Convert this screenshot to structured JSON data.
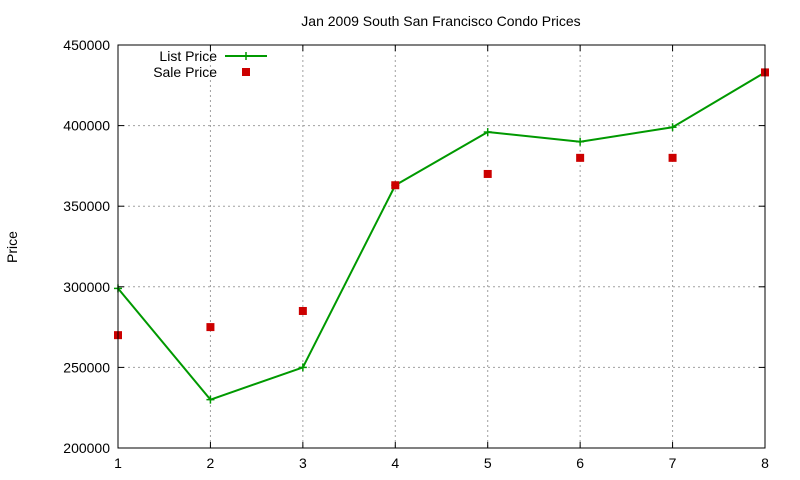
{
  "chart_data": {
    "type": "line",
    "title": "Jan 2009 South San Francisco Condo Prices",
    "xlabel": "",
    "ylabel": "Price",
    "x": [
      1,
      2,
      3,
      4,
      5,
      6,
      7,
      8
    ],
    "xlim": [
      1,
      8
    ],
    "ylim": [
      200000,
      450000
    ],
    "x_ticks": [
      "1",
      "2",
      "3",
      "4",
      "5",
      "6",
      "7",
      "8"
    ],
    "y_ticks": [
      "200000",
      "250000",
      "300000",
      "350000",
      "400000",
      "450000"
    ],
    "grid": true,
    "legend_position": "top-left",
    "series": [
      {
        "name": "List Price",
        "style": "line-with-plus-markers",
        "color": "#009900",
        "values": [
          299000,
          230000,
          250000,
          363000,
          396000,
          390000,
          399000,
          433000
        ]
      },
      {
        "name": "Sale Price",
        "style": "square-markers",
        "color": "#cc0000",
        "values": [
          270000,
          275000,
          285000,
          363000,
          370000,
          380000,
          380000,
          433000
        ]
      }
    ]
  }
}
